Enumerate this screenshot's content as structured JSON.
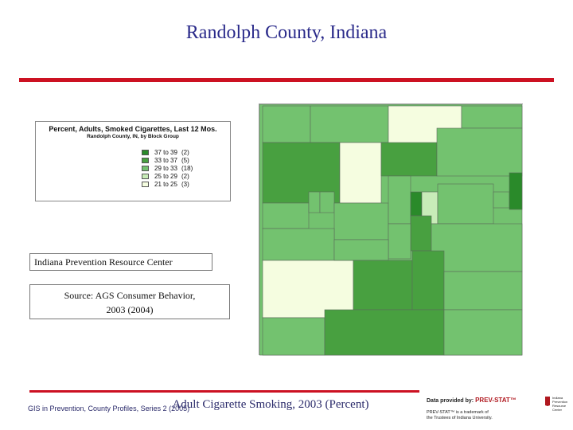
{
  "title": "Randolph County, Indiana",
  "legend": {
    "title": "Percent, Adults, Smoked Cigarettes, Last 12 Mos.",
    "subtitle": "Randolph County, IN, by Block Group",
    "items": [
      {
        "range": "37 to 39",
        "count": "(2)",
        "color": "#2a8a2a"
      },
      {
        "range": "33 to 37",
        "count": "(5)",
        "color": "#48a040"
      },
      {
        "range": "29 to 33",
        "count": "(18)",
        "color": "#73c26f"
      },
      {
        "range": "25 to 29",
        "count": "(2)",
        "color": "#c8ecb8"
      },
      {
        "range": "21 to 25",
        "count": "(3)",
        "color": "#f5fde0"
      }
    ]
  },
  "boxes": {
    "ipc": "Indiana Prevention Resource Center",
    "source_line1": "Source: AGS Consumer Behavior,",
    "source_line2": "2003 (2004)"
  },
  "footer": {
    "left": "GIS in Prevention, County Profiles, Series 2 (2005)",
    "center": "Adult Cigarette Smoking, 2003 (Percent)"
  },
  "logo": {
    "line1_prefix": "Data provided by: ",
    "line1_brand": "PREV-STAT™",
    "line2": "PREV-STAT™ is a trademark of",
    "line3": "the Trustees of Indiana University.",
    "side": "Indiana Prevention Resource Center"
  }
}
